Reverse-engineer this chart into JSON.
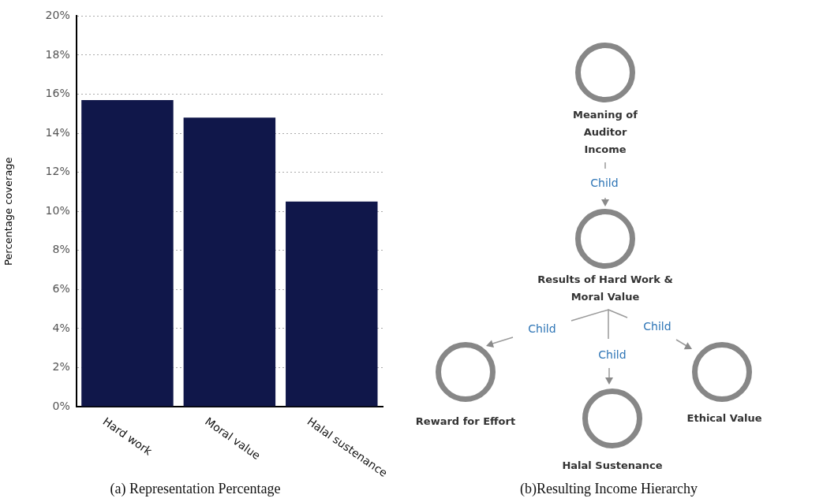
{
  "chart_data": [
    {
      "type": "bar",
      "title": "(a) Representation Percentage",
      "ylabel": "Percentage coverage",
      "categories": [
        "Hard work",
        "Moral value",
        "Halal sustenance"
      ],
      "values": [
        15.7,
        14.8,
        10.5
      ],
      "color": "#10174a",
      "ylim": [
        0,
        20
      ],
      "yticks": [
        {
          "value": 0,
          "label": "0%"
        },
        {
          "value": 2,
          "label": "2%"
        },
        {
          "value": 4,
          "label": "4%"
        },
        {
          "value": 6,
          "label": "6%"
        },
        {
          "value": 8,
          "label": "8%"
        },
        {
          "value": 10,
          "label": "10%"
        },
        {
          "value": 12,
          "label": "12%"
        },
        {
          "value": 14,
          "label": "14%"
        },
        {
          "value": 16,
          "label": "16%"
        },
        {
          "value": 18,
          "label": "18%"
        },
        {
          "value": 20,
          "label": "20%"
        }
      ],
      "grid": "y"
    },
    {
      "type": "other",
      "title": "(b)Resulting Income Hierarchy",
      "annotations": [
        "Meaning of Auditor Income",
        "Results of Hard Work & Moral Value",
        "Reward for Effort",
        "Halal Sustenance",
        "Ethical Value",
        "Child",
        "Child",
        "Child",
        "Child"
      ]
    }
  ]
}
